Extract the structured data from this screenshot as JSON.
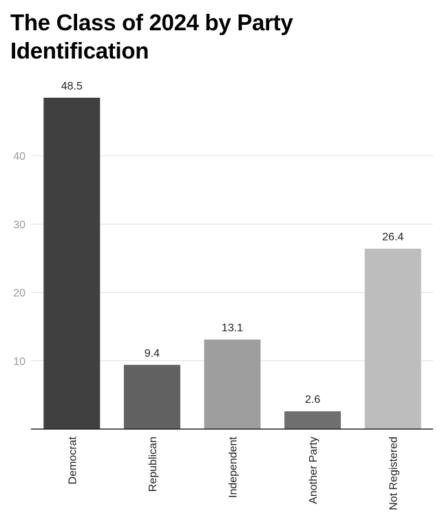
{
  "chart_data": {
    "type": "bar",
    "title": "The Class of 2024 by Party Identification",
    "categories": [
      "Democrat",
      "Republican",
      "Independent",
      "Another Party",
      "Not Registered"
    ],
    "values": [
      48.5,
      9.4,
      13.1,
      2.6,
      26.4
    ],
    "data_labels": [
      "48.5",
      "9.4",
      "13.1",
      "2.6",
      "26.4"
    ],
    "colors": [
      "#404040",
      "#616161",
      "#9e9e9e",
      "#6f6f6f",
      "#bdbdbd"
    ],
    "yticks": [
      10,
      20,
      30,
      40
    ],
    "ylim": [
      0,
      50
    ],
    "grid": true,
    "legend": "none",
    "xlabel": "",
    "ylabel": ""
  }
}
